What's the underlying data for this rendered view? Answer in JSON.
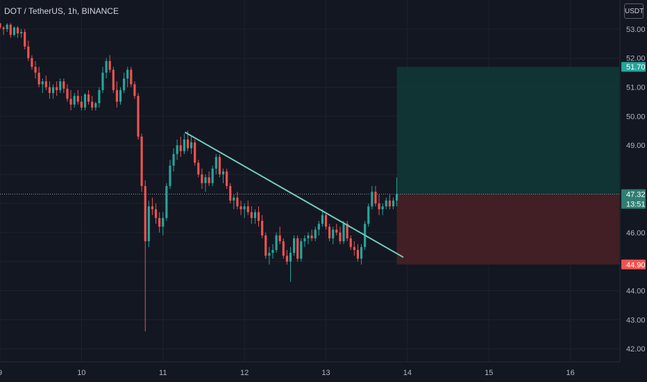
{
  "header": {
    "symbol": "DOT / TetherUS, 1h, BINANCE"
  },
  "currency_button": "USDT",
  "colors": {
    "background": "#131722",
    "grid": "#1e222d",
    "up": "#26a69a",
    "down": "#ef5350",
    "trendline": "#70ccbd",
    "target_zone": "#0f3a36",
    "stop_zone": "#4a2125",
    "axis_text": "#b2b5be"
  },
  "chart_data": {
    "type": "candlestick",
    "title": "DOT / TetherUS, 1h, BINANCE",
    "y_ticks": [
      42,
      43,
      44,
      45,
      46,
      47,
      48,
      49,
      50,
      51,
      52,
      53
    ],
    "y_tick_labels": [
      "42.00",
      "43.00",
      "44.00",
      "",
      "46.00",
      "",
      "",
      "49.00",
      "50.00",
      "51.00",
      "52.00",
      "53.00"
    ],
    "ylim": [
      41.55,
      54.0
    ],
    "x_ticks": [
      {
        "label": "9",
        "day": 9
      },
      {
        "label": "10",
        "day": 10
      },
      {
        "label": "11",
        "day": 11
      },
      {
        "label": "12",
        "day": 12
      },
      {
        "label": "13",
        "day": 13
      },
      {
        "label": "14",
        "day": 14
      },
      {
        "label": "15",
        "day": 15
      },
      {
        "label": "16",
        "day": 16
      }
    ],
    "xlim_days": [
      9.0,
      16.6
    ],
    "current_price": 47.32,
    "countdown": "13:51",
    "trendline": {
      "start": {
        "day": 11.27,
        "price": 49.45
      },
      "end": {
        "day": 13.95,
        "price": 45.15
      }
    },
    "position": {
      "entry": 47.32,
      "target": 51.7,
      "stop": 44.9,
      "start_day": 13.87,
      "end_day": 16.6,
      "entry_label": "47.32",
      "target_label": "51.70",
      "stop_label": "44.90"
    },
    "ohlc": [
      [
        53.2,
        53.2,
        53.0,
        53.05
      ],
      [
        53.05,
        53.1,
        52.8,
        53.0
      ],
      [
        53.0,
        53.2,
        52.9,
        53.15
      ],
      [
        53.15,
        53.2,
        52.7,
        52.8
      ],
      [
        52.8,
        53.1,
        52.75,
        53.05
      ],
      [
        53.05,
        53.1,
        52.7,
        52.85
      ],
      [
        52.85,
        53.0,
        52.7,
        52.9
      ],
      [
        52.9,
        53.0,
        52.3,
        52.4
      ],
      [
        52.4,
        52.6,
        51.9,
        52.0
      ],
      [
        52.0,
        52.1,
        51.6,
        51.7
      ],
      [
        51.7,
        51.9,
        51.3,
        51.5
      ],
      [
        51.5,
        51.7,
        51.0,
        51.1
      ],
      [
        51.1,
        51.3,
        50.8,
        51.2
      ],
      [
        51.2,
        51.4,
        50.9,
        51.0
      ],
      [
        51.0,
        51.2,
        50.6,
        50.8
      ],
      [
        50.8,
        51.1,
        50.6,
        51.0
      ],
      [
        51.0,
        51.2,
        50.7,
        50.9
      ],
      [
        50.9,
        51.3,
        50.8,
        51.2
      ],
      [
        51.2,
        51.3,
        50.8,
        50.95
      ],
      [
        50.95,
        51.1,
        50.5,
        50.6
      ],
      [
        50.6,
        50.9,
        50.2,
        50.4
      ],
      [
        50.4,
        50.8,
        50.3,
        50.7
      ],
      [
        50.7,
        50.9,
        50.4,
        50.5
      ],
      [
        50.5,
        50.7,
        50.2,
        50.3
      ],
      [
        50.3,
        50.8,
        50.2,
        50.75
      ],
      [
        50.75,
        50.9,
        50.4,
        50.5
      ],
      [
        50.5,
        50.7,
        50.2,
        50.3
      ],
      [
        50.3,
        50.5,
        50.2,
        50.45
      ],
      [
        50.45,
        51.0,
        50.3,
        50.9
      ],
      [
        50.9,
        51.7,
        50.8,
        51.5
      ],
      [
        51.5,
        52.0,
        51.3,
        51.9
      ],
      [
        51.9,
        52.1,
        51.5,
        51.6
      ],
      [
        51.6,
        51.7,
        50.8,
        50.9
      ],
      [
        50.9,
        51.2,
        50.3,
        50.5
      ],
      [
        50.5,
        51.0,
        50.4,
        50.9
      ],
      [
        50.9,
        51.5,
        50.8,
        51.3
      ],
      [
        51.3,
        51.7,
        51.0,
        51.6
      ],
      [
        51.6,
        51.7,
        51.0,
        51.1
      ],
      [
        51.1,
        51.2,
        50.6,
        50.7
      ],
      [
        50.7,
        50.8,
        49.2,
        49.3
      ],
      [
        49.3,
        49.4,
        47.4,
        47.6
      ],
      [
        47.6,
        47.8,
        42.6,
        45.7
      ],
      [
        45.7,
        47.1,
        45.5,
        46.9
      ],
      [
        46.9,
        47.2,
        46.6,
        46.8
      ],
      [
        46.8,
        47.0,
        46.3,
        46.5
      ],
      [
        46.5,
        46.7,
        46.0,
        46.2
      ],
      [
        46.2,
        46.7,
        45.9,
        46.5
      ],
      [
        46.5,
        47.7,
        46.4,
        47.6
      ],
      [
        47.6,
        48.5,
        47.5,
        48.3
      ],
      [
        48.3,
        48.9,
        48.1,
        48.7
      ],
      [
        48.7,
        49.2,
        48.5,
        49.0
      ],
      [
        49.0,
        49.3,
        48.6,
        48.8
      ],
      [
        48.8,
        49.4,
        48.7,
        49.2
      ],
      [
        49.2,
        49.5,
        48.8,
        48.9
      ],
      [
        48.9,
        49.3,
        48.7,
        49.1
      ],
      [
        49.1,
        49.2,
        48.3,
        48.4
      ],
      [
        48.4,
        48.5,
        47.9,
        48.0
      ],
      [
        48.0,
        48.2,
        47.5,
        47.7
      ],
      [
        47.7,
        48.0,
        47.4,
        47.9
      ],
      [
        47.9,
        48.1,
        47.6,
        47.7
      ],
      [
        47.7,
        48.3,
        47.6,
        48.2
      ],
      [
        48.2,
        48.7,
        48.0,
        48.6
      ],
      [
        48.6,
        48.7,
        47.9,
        48.0
      ],
      [
        48.0,
        48.2,
        47.7,
        48.1
      ],
      [
        48.1,
        48.2,
        47.5,
        47.6
      ],
      [
        47.6,
        47.7,
        47.0,
        47.1
      ],
      [
        47.1,
        47.3,
        46.8,
        47.2
      ],
      [
        47.2,
        47.4,
        46.8,
        46.9
      ],
      [
        46.9,
        47.1,
        46.6,
        46.8
      ],
      [
        46.8,
        47.0,
        46.5,
        46.9
      ],
      [
        46.9,
        47.1,
        46.6,
        46.7
      ],
      [
        46.7,
        46.9,
        46.3,
        46.5
      ],
      [
        46.5,
        46.8,
        46.3,
        46.7
      ],
      [
        46.7,
        46.9,
        46.2,
        46.4
      ],
      [
        46.4,
        46.6,
        45.8,
        45.9
      ],
      [
        45.9,
        46.0,
        45.1,
        45.2
      ],
      [
        45.2,
        45.5,
        44.9,
        45.3
      ],
      [
        45.3,
        45.6,
        45.1,
        45.4
      ],
      [
        45.4,
        46.0,
        45.3,
        45.9
      ],
      [
        45.9,
        46.2,
        45.6,
        45.7
      ],
      [
        45.7,
        45.8,
        45.1,
        45.2
      ],
      [
        45.2,
        45.4,
        44.9,
        45.0
      ],
      [
        45.0,
        45.5,
        44.3,
        45.3
      ],
      [
        45.3,
        45.9,
        45.2,
        45.8
      ],
      [
        45.8,
        45.9,
        45.0,
        45.1
      ],
      [
        45.1,
        45.8,
        45.0,
        45.7
      ],
      [
        45.7,
        45.9,
        45.5,
        45.8
      ],
      [
        45.8,
        46.0,
        45.6,
        45.9
      ],
      [
        45.9,
        46.1,
        45.7,
        45.8
      ],
      [
        45.8,
        46.2,
        45.7,
        46.1
      ],
      [
        46.1,
        46.4,
        45.9,
        46.3
      ],
      [
        46.3,
        46.8,
        46.2,
        46.6
      ],
      [
        46.6,
        46.7,
        46.1,
        46.2
      ],
      [
        46.2,
        46.3,
        45.7,
        45.8
      ],
      [
        45.8,
        46.2,
        45.6,
        46.1
      ],
      [
        46.1,
        46.3,
        45.9,
        46.0
      ],
      [
        46.0,
        46.2,
        45.6,
        45.7
      ],
      [
        45.7,
        46.4,
        45.6,
        46.3
      ],
      [
        46.3,
        46.4,
        45.7,
        45.8
      ],
      [
        45.8,
        45.9,
        45.4,
        45.5
      ],
      [
        45.5,
        45.7,
        45.2,
        45.4
      ],
      [
        45.4,
        45.6,
        45.0,
        45.1
      ],
      [
        45.1,
        45.6,
        44.9,
        45.5
      ],
      [
        45.5,
        46.4,
        45.4,
        46.3
      ],
      [
        46.3,
        47.0,
        46.2,
        46.9
      ],
      [
        46.9,
        47.6,
        46.8,
        47.4
      ],
      [
        47.4,
        47.6,
        46.9,
        47.0
      ],
      [
        47.0,
        47.3,
        46.6,
        46.8
      ],
      [
        46.8,
        47.0,
        46.6,
        46.9
      ],
      [
        46.9,
        47.2,
        46.8,
        47.1
      ],
      [
        47.1,
        47.3,
        46.8,
        46.9
      ],
      [
        46.9,
        47.2,
        46.8,
        47.1
      ],
      [
        47.1,
        47.9,
        46.9,
        47.32
      ]
    ]
  }
}
